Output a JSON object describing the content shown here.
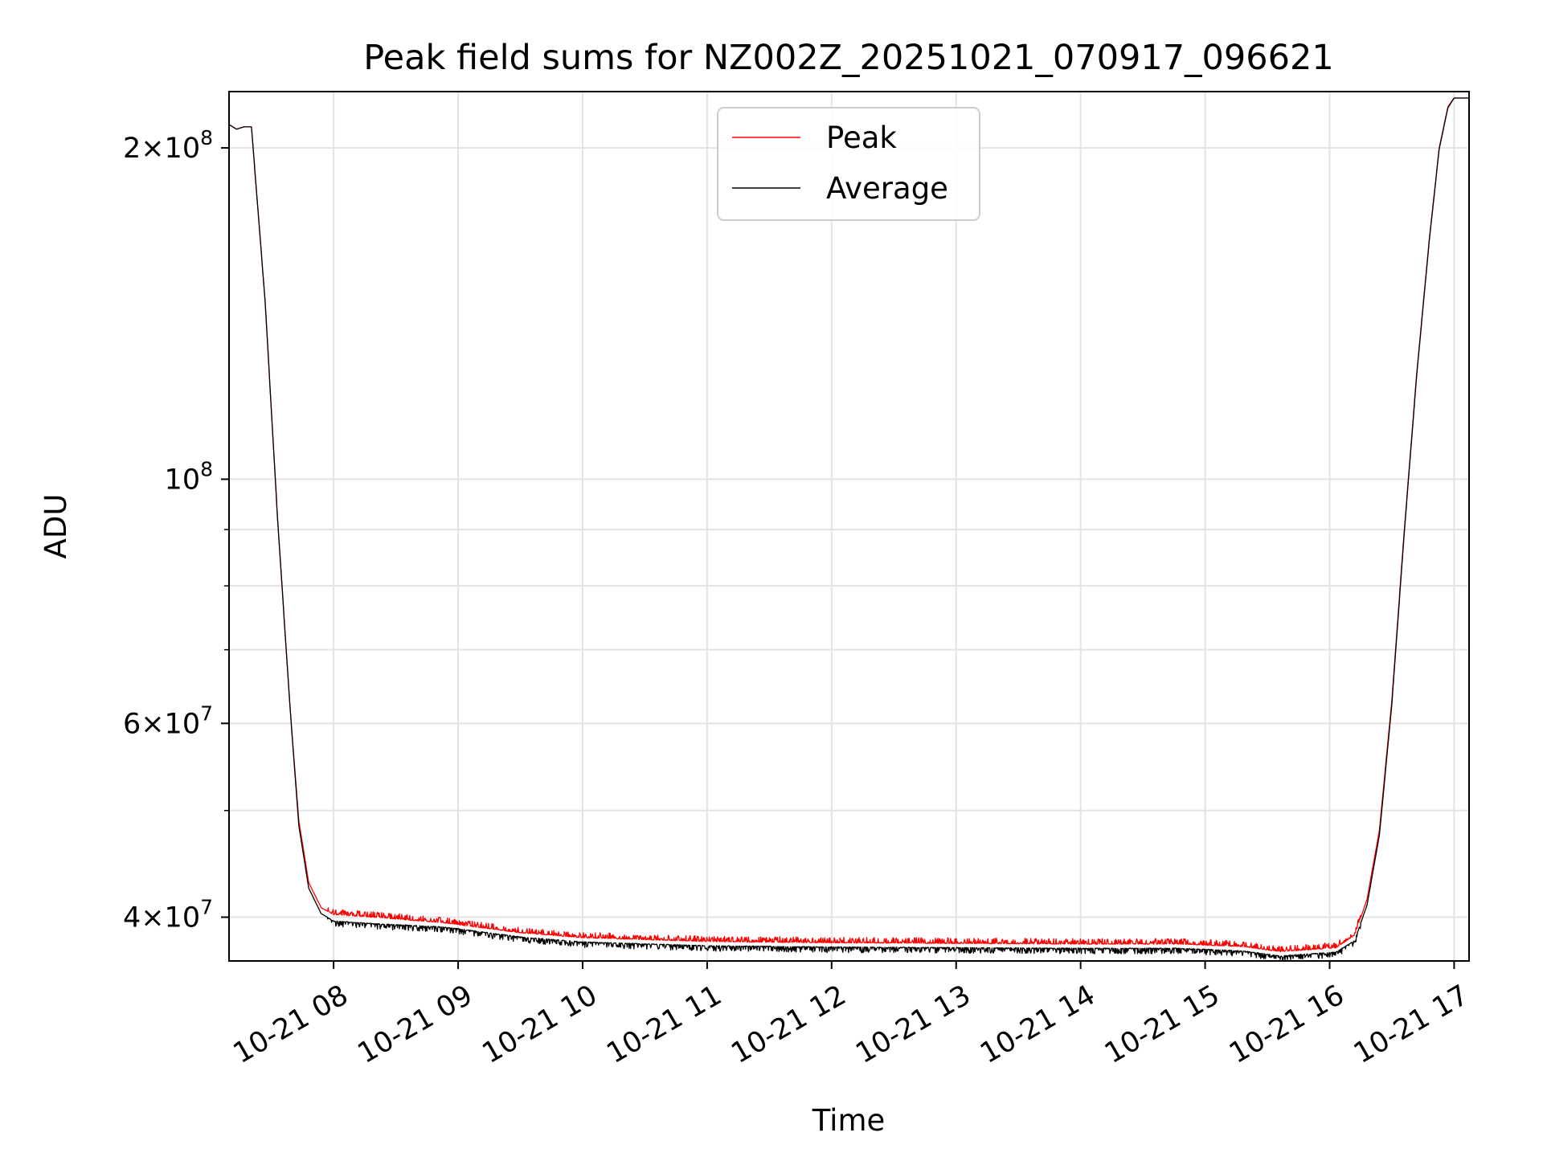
{
  "chart_data": {
    "type": "line",
    "title": "Peak field sums for NZ002Z_20251021_070917_096621",
    "xlabel": "Time",
    "ylabel": "ADU",
    "yscale": "log",
    "ylim": [
      36500000,
      225000000
    ],
    "xlim_hours": [
      7.16,
      17.12
    ],
    "grid": true,
    "legend_position": "upper center",
    "x_ticks": [
      {
        "hour": 8,
        "label": "10-21 08"
      },
      {
        "hour": 9,
        "label": "10-21 09"
      },
      {
        "hour": 10,
        "label": "10-21 10"
      },
      {
        "hour": 11,
        "label": "10-21 11"
      },
      {
        "hour": 12,
        "label": "10-21 12"
      },
      {
        "hour": 13,
        "label": "10-21 13"
      },
      {
        "hour": 14,
        "label": "10-21 14"
      },
      {
        "hour": 15,
        "label": "10-21 15"
      },
      {
        "hour": 16,
        "label": "10-21 16"
      },
      {
        "hour": 17,
        "label": "10-21 17"
      }
    ],
    "y_major_ticks": [
      {
        "value": 40000000,
        "mant": "4",
        "exp": "7"
      },
      {
        "value": 60000000,
        "mant": "6",
        "exp": "7"
      },
      {
        "value": 100000000,
        "mant": "",
        "exp": "8"
      },
      {
        "value": 200000000,
        "mant": "2",
        "exp": "8"
      }
    ],
    "y_minor_ticks": [
      50000000,
      70000000,
      80000000,
      90000000
    ],
    "series": [
      {
        "name": "Peak",
        "color": "#ff0000",
        "noise": 0.012,
        "noise_bias": 1.0,
        "x_hours": [
          7.16,
          7.22,
          7.28,
          7.34,
          7.45,
          7.55,
          7.65,
          7.72,
          7.8,
          7.9,
          8.0,
          8.3,
          8.9,
          9.5,
          10.0,
          11.0,
          12.0,
          13.0,
          14.0,
          14.8,
          15.3,
          15.6,
          15.9,
          16.05,
          16.2,
          16.3,
          16.4,
          16.5,
          16.6,
          16.7,
          16.8,
          16.88,
          16.95,
          17.0,
          17.12
        ],
        "values": [
          210000000,
          208000000,
          209000000,
          209000000,
          145000000,
          92000000,
          62000000,
          49000000,
          43000000,
          40800000,
          40200000,
          40000000,
          39500000,
          38700000,
          38300000,
          38000000,
          37900000,
          37850000,
          37800000,
          37800000,
          37600000,
          37200000,
          37400000,
          37500000,
          38500000,
          41500000,
          48000000,
          63000000,
          90000000,
          125000000,
          165000000,
          200000000,
          218000000,
          222000000,
          222000000
        ]
      },
      {
        "name": "Average",
        "color": "#000000",
        "noise": 0.012,
        "noise_bias": -1.0,
        "x_hours": [
          7.16,
          7.22,
          7.28,
          7.34,
          7.45,
          7.55,
          7.65,
          7.72,
          7.8,
          7.9,
          8.0,
          8.3,
          8.9,
          9.5,
          10.0,
          11.0,
          12.0,
          13.0,
          14.0,
          14.8,
          15.3,
          15.6,
          15.9,
          16.05,
          16.2,
          16.3,
          16.4,
          16.5,
          16.6,
          16.7,
          16.8,
          16.88,
          16.95,
          17.0,
          17.12
        ],
        "values": [
          210000000,
          208000000,
          209000000,
          209000000,
          145000000,
          92000000,
          62000000,
          48500000,
          42500000,
          40300000,
          39700000,
          39500000,
          39200000,
          38400000,
          38000000,
          37700000,
          37600000,
          37550000,
          37500000,
          37500000,
          37300000,
          36900000,
          37100000,
          37200000,
          38100000,
          41000000,
          47500000,
          62500000,
          89500000,
          124500000,
          164500000,
          199500000,
          217500000,
          222000000,
          222000000
        ]
      }
    ]
  }
}
